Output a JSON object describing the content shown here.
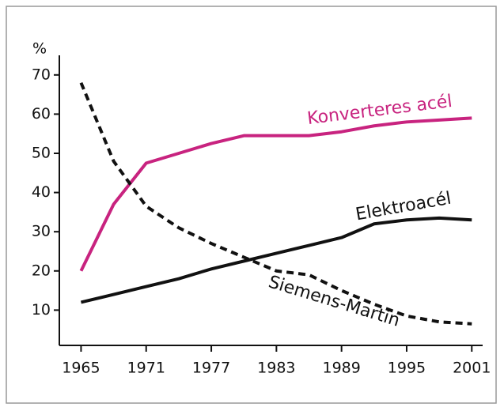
{
  "chart_data": {
    "type": "line",
    "y_axis_label": "%",
    "x": [
      1965,
      1968,
      1971,
      1974,
      1977,
      1980,
      1983,
      1986,
      1989,
      1992,
      1995,
      1998,
      2001
    ],
    "series": [
      {
        "name": "Konverteres acél",
        "color": "#c8237f",
        "style": "solid",
        "values": [
          20,
          37,
          47.5,
          50,
          52.5,
          54.5,
          54.5,
          54.5,
          55.5,
          57,
          58,
          58.5,
          59
        ]
      },
      {
        "name": "Elektroacél",
        "color": "#111111",
        "style": "solid",
        "values": [
          12,
          14,
          16,
          18,
          20.5,
          22.5,
          24.5,
          26.5,
          28.5,
          32,
          33,
          33.5,
          33
        ]
      },
      {
        "name": "Siemens-Martin",
        "color": "#111111",
        "style": "dashed",
        "values": [
          68,
          48,
          36.5,
          31,
          27,
          23.5,
          20,
          19,
          15,
          11.5,
          8.5,
          7,
          6.5
        ]
      }
    ],
    "xlim": [
      1963,
      2002
    ],
    "xticks": [
      1965,
      1971,
      1977,
      1983,
      1989,
      1995,
      2001
    ],
    "ylim": [
      1,
      75
    ],
    "yticks": [
      10,
      20,
      30,
      40,
      50,
      60,
      70
    ],
    "grid": false
  }
}
